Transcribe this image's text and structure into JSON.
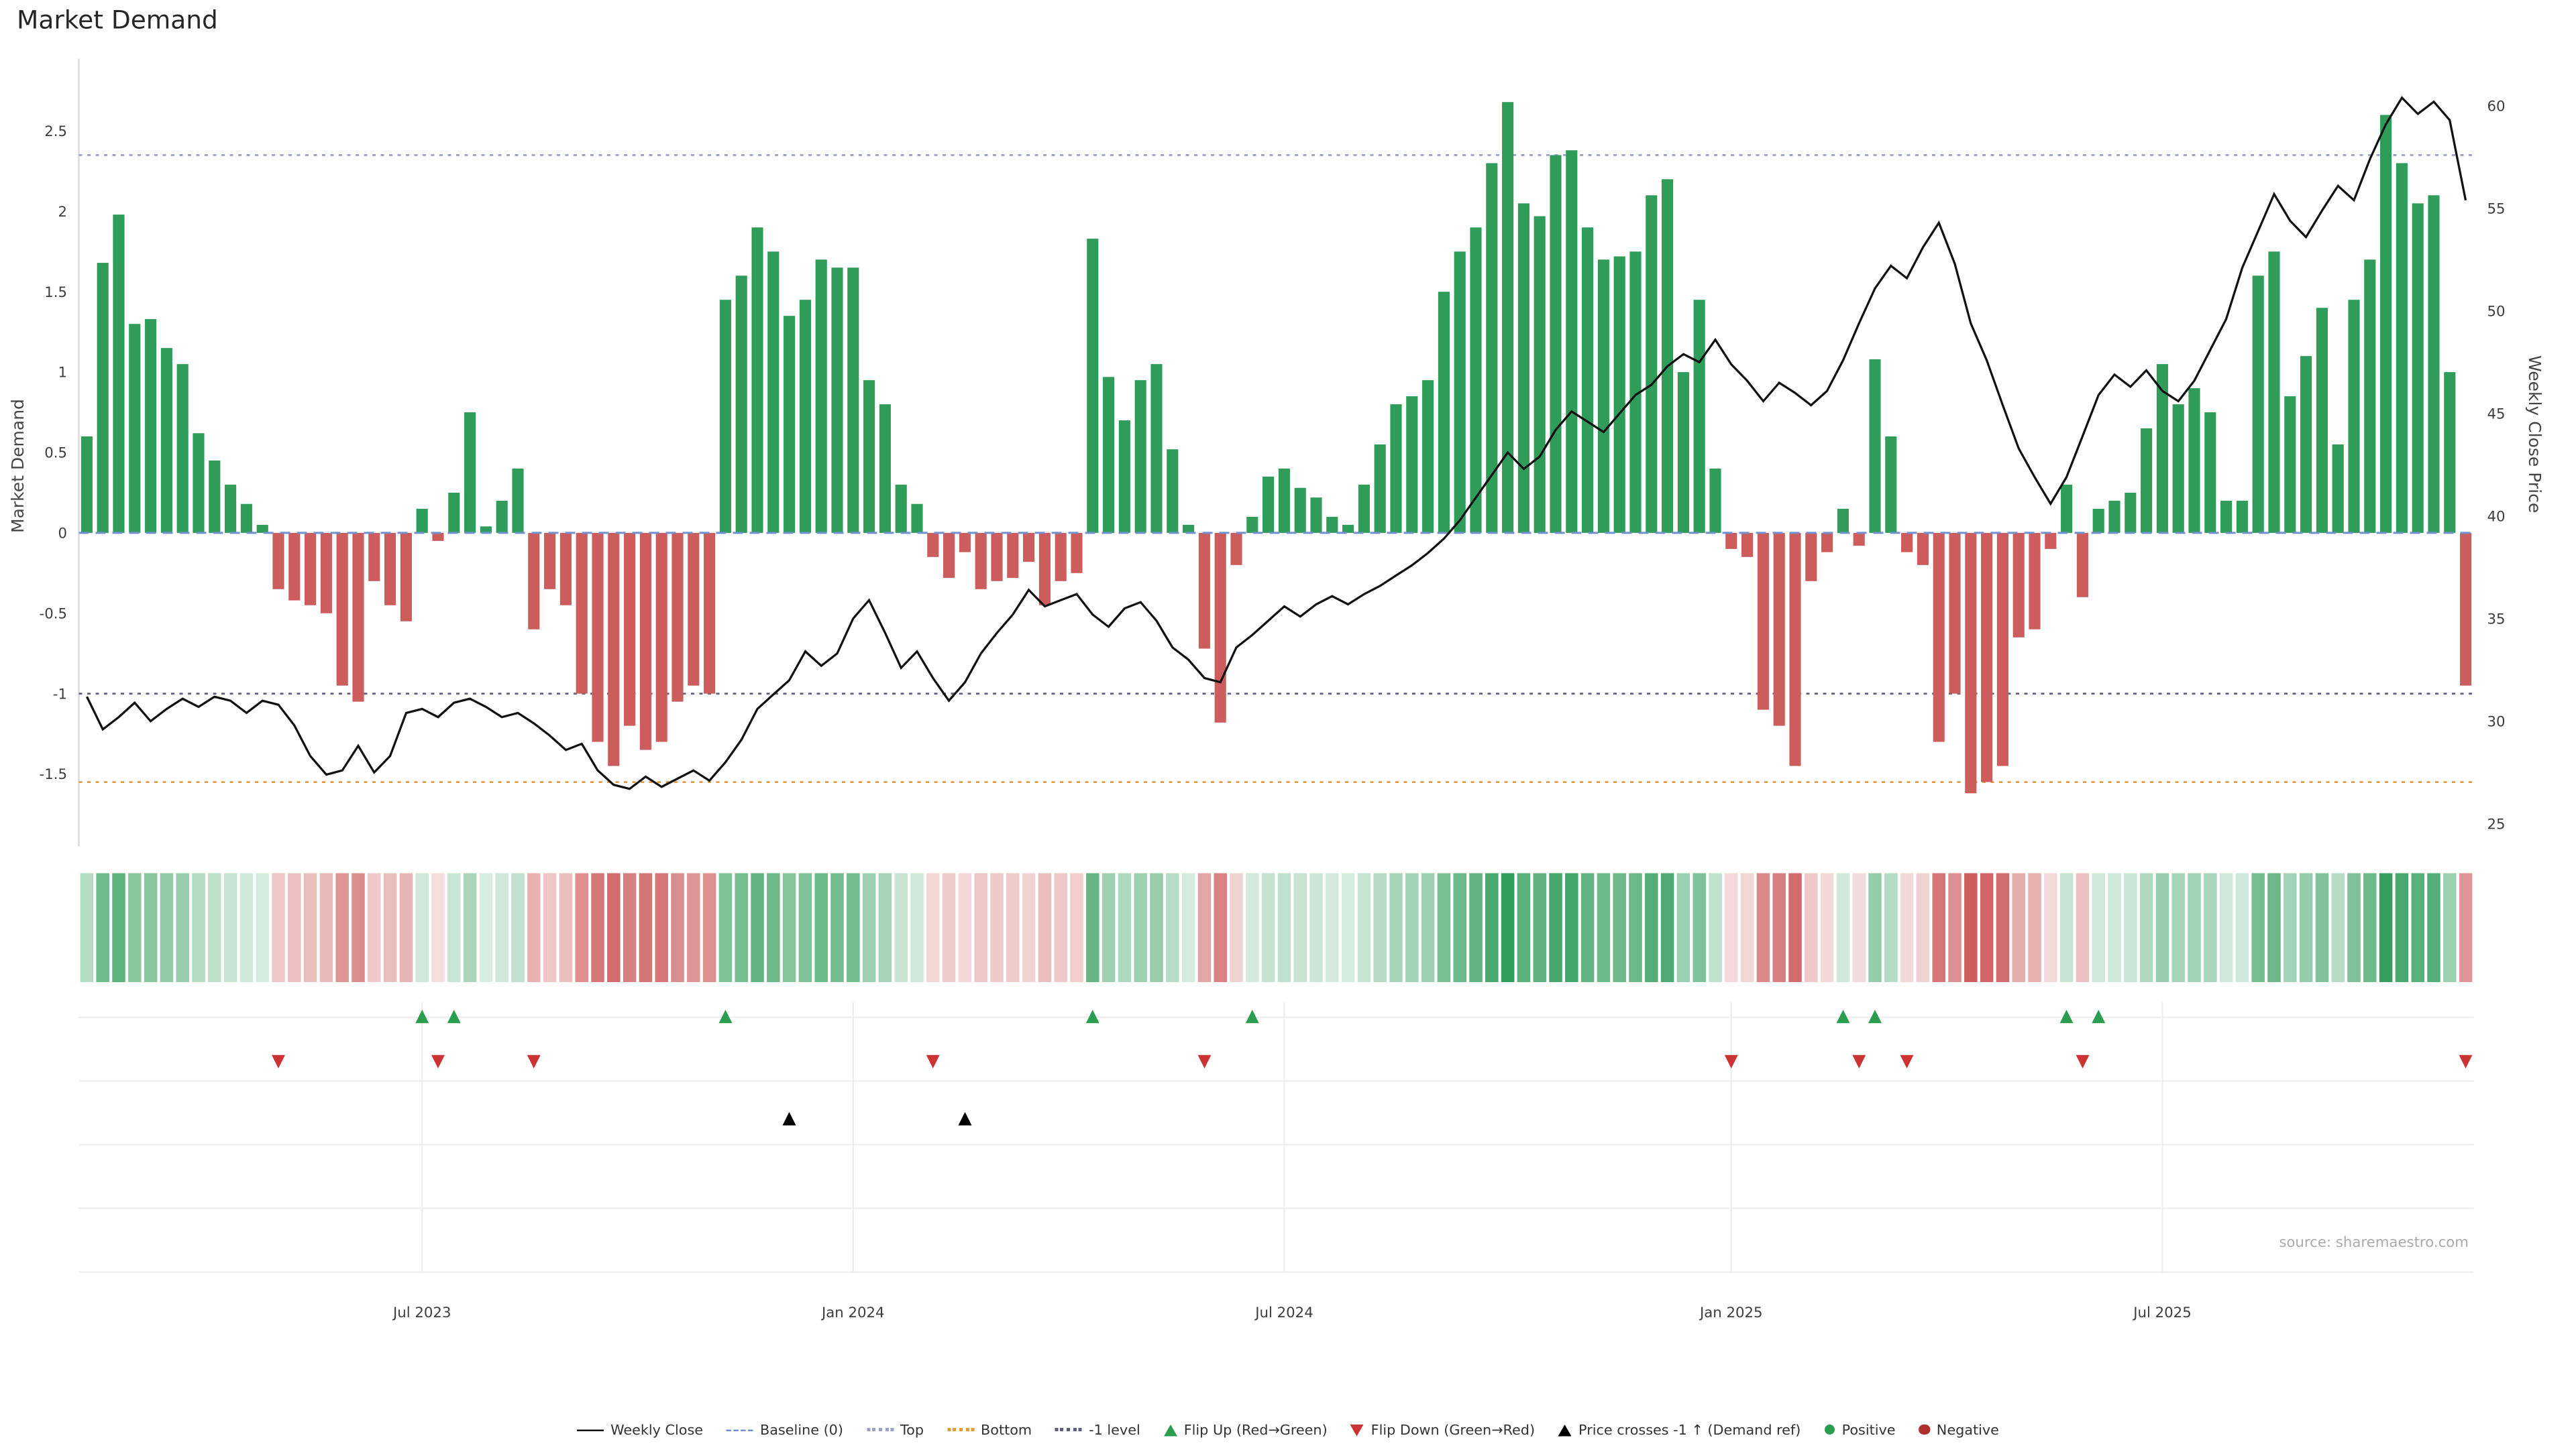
{
  "title": "Market Demand",
  "source": "source: sharemaestro.com",
  "axes": {
    "left_label": "Market Demand",
    "right_label": "Weekly Close Price",
    "left_ticks": [
      2.5,
      2,
      1.5,
      1,
      0.5,
      0,
      -0.5,
      -1,
      -1.5
    ],
    "right_ticks": [
      60,
      55,
      50,
      45,
      40,
      35,
      30,
      25
    ]
  },
  "colors": {
    "positive": "#2f9c5a",
    "negative": "#cd5c5c",
    "line": "#111111",
    "baseline": "#7191ce",
    "top": "#9aa0c8",
    "bottom": "#e39b41",
    "minus_one": "#5f5f7d",
    "flip_up": "#2a9d4e",
    "flip_down": "#cc3333",
    "cross": "#000000"
  },
  "chart_data": {
    "type": "bar+line",
    "x_unit": "week",
    "num_weeks": 150,
    "demand_range": [
      -1.95,
      2.95
    ],
    "price_range": [
      23.9,
      62.3
    ],
    "reference_lines": {
      "baseline": 0,
      "top": 2.35,
      "bottom": -1.55,
      "minus_one": -1
    },
    "x_ticks": [
      {
        "label": "Jul 2023",
        "index": 21
      },
      {
        "label": "Jan 2024",
        "index": 48
      },
      {
        "label": "Jul 2024",
        "index": 75
      },
      {
        "label": "Jan 2025",
        "index": 103
      },
      {
        "label": "Jul 2025",
        "index": 130
      }
    ],
    "demand_bars": [
      0.6,
      1.68,
      1.98,
      1.3,
      1.33,
      1.15,
      1.05,
      0.62,
      0.45,
      0.3,
      0.18,
      0.05,
      -0.35,
      -0.42,
      -0.45,
      -0.5,
      -0.95,
      -1.05,
      -0.3,
      -0.45,
      -0.55,
      0.15,
      -0.05,
      0.25,
      0.75,
      0.04,
      0.2,
      0.4,
      -0.6,
      -0.35,
      -0.45,
      -1.0,
      -1.3,
      -1.45,
      -1.2,
      -1.35,
      -1.3,
      -1.05,
      -0.95,
      -1.0,
      1.45,
      1.6,
      1.9,
      1.75,
      1.35,
      1.45,
      1.7,
      1.65,
      1.65,
      0.95,
      0.8,
      0.3,
      0.18,
      -0.15,
      -0.28,
      -0.12,
      -0.35,
      -0.3,
      -0.28,
      -0.18,
      -0.45,
      -0.3,
      -0.25,
      1.83,
      0.97,
      0.7,
      0.95,
      1.05,
      0.52,
      0.05,
      -0.72,
      -1.18,
      -0.2,
      0.1,
      0.35,
      0.4,
      0.28,
      0.22,
      0.1,
      0.05,
      0.3,
      0.55,
      0.8,
      0.85,
      0.95,
      1.5,
      1.75,
      1.9,
      2.3,
      2.68,
      2.05,
      1.97,
      2.35,
      2.38,
      1.9,
      1.7,
      1.72,
      1.75,
      2.1,
      2.2,
      1.0,
      1.45,
      0.4,
      -0.1,
      -0.15,
      -1.1,
      -1.2,
      -1.45,
      -0.3,
      -0.12,
      0.15,
      -0.08,
      1.08,
      0.6,
      -0.12,
      -0.2,
      -1.3,
      -1.0,
      -1.62,
      -1.55,
      -1.45,
      -0.65,
      -0.6,
      -0.1,
      0.3,
      -0.4,
      0.15,
      0.2,
      0.25,
      0.65,
      1.05,
      0.8,
      0.9,
      0.75,
      0.2,
      0.2,
      1.6,
      1.75,
      0.85,
      1.1,
      1.4,
      0.55,
      1.45,
      1.7,
      2.6,
      2.3,
      2.05,
      2.1,
      1.0,
      -0.95
    ],
    "weekly_close": [
      31.2,
      29.6,
      30.2,
      30.9,
      30.0,
      30.6,
      31.1,
      30.7,
      31.2,
      31.0,
      30.4,
      31.0,
      30.8,
      29.8,
      28.3,
      27.4,
      27.6,
      28.8,
      27.5,
      28.3,
      30.4,
      30.6,
      30.2,
      30.9,
      31.1,
      30.7,
      30.2,
      30.4,
      29.9,
      29.3,
      28.6,
      28.9,
      27.6,
      26.9,
      26.7,
      27.3,
      26.8,
      27.2,
      27.6,
      27.1,
      28.0,
      29.1,
      30.6,
      31.3,
      32.0,
      33.4,
      32.7,
      33.3,
      35.0,
      35.9,
      34.3,
      32.6,
      33.4,
      32.1,
      31.0,
      31.9,
      33.3,
      34.3,
      35.2,
      36.4,
      35.6,
      35.9,
      36.2,
      35.2,
      34.6,
      35.5,
      35.8,
      34.9,
      33.6,
      33.0,
      32.1,
      31.9,
      33.6,
      34.2,
      34.9,
      35.6,
      35.1,
      35.7,
      36.1,
      35.7,
      36.2,
      36.6,
      37.1,
      37.6,
      38.2,
      38.9,
      39.8,
      40.9,
      42.0,
      43.1,
      42.3,
      42.9,
      44.2,
      45.1,
      44.6,
      44.1,
      45.0,
      45.9,
      46.4,
      47.3,
      47.9,
      47.5,
      48.6,
      47.4,
      46.6,
      45.6,
      46.5,
      46.0,
      45.4,
      46.1,
      47.6,
      49.4,
      51.1,
      52.2,
      51.6,
      53.1,
      54.3,
      52.3,
      49.4,
      47.6,
      45.4,
      43.3,
      41.9,
      40.6,
      41.9,
      43.9,
      45.9,
      46.9,
      46.3,
      47.1,
      46.1,
      45.6,
      46.6,
      48.1,
      49.6,
      52.1,
      53.9,
      55.7,
      54.4,
      53.6,
      54.9,
      56.1,
      55.4,
      57.4,
      59.1,
      60.4,
      59.6,
      60.2,
      59.3,
      55.4
    ]
  },
  "legend": {
    "items": [
      {
        "label": "Weekly Close",
        "glyph": "line",
        "color": "#111111"
      },
      {
        "label": "Baseline (0)",
        "glyph": "dash",
        "color": "#7191ce"
      },
      {
        "label": "Top",
        "glyph": "dot-line",
        "color": "#9aa0c8"
      },
      {
        "label": "Bottom",
        "glyph": "dot-line",
        "color": "#e39b41"
      },
      {
        "label": "-1 level",
        "glyph": "dot-line",
        "color": "#5f5f7d"
      },
      {
        "label": "Flip Up (Red→Green)",
        "glyph": "tri-up",
        "color": "#2a9d4e"
      },
      {
        "label": "Flip Down (Green→Red)",
        "glyph": "tri-down",
        "color": "#cc3333"
      },
      {
        "label": "Price crosses -1 ↑ (Demand ref)",
        "glyph": "tri-up",
        "color": "#000000"
      },
      {
        "label": "Positive",
        "glyph": "dot",
        "color": "#2a9d4e"
      },
      {
        "label": "Negative",
        "glyph": "dot",
        "color": "#b03030"
      }
    ]
  }
}
